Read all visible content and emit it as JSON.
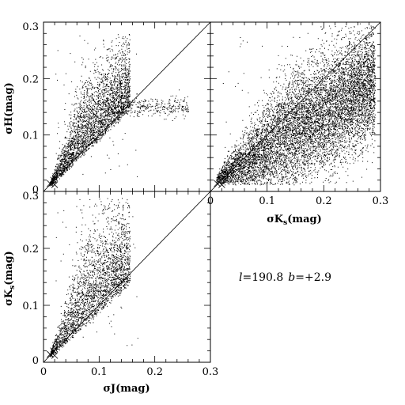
{
  "chart_data": [
    {
      "type": "scatter",
      "panel": "top-left",
      "xlabel": "",
      "ylabel": "σH(mag)",
      "xlim": [
        0,
        0.3
      ],
      "ylim": [
        0,
        0.3
      ],
      "x_tick_labels": [],
      "y_tick_labels": [
        "0",
        "0.1",
        "0.2",
        "0.3"
      ],
      "diagonal_reference": true,
      "shape": {
        "x_min": 0.01,
        "x_cut": 0.155,
        "y_floor": 0.015,
        "slope": 1.7,
        "spread": 0.06,
        "y_max": 0.28,
        "tail_y": 0.15,
        "tail_x_max": 0.26
      }
    },
    {
      "type": "scatter",
      "panel": "top-right",
      "xlabel": "σK",
      "xlabel_sub": "s",
      "xlabel_unit": "(mag)",
      "ylabel": "",
      "xlim": [
        0,
        0.3
      ],
      "ylim": [
        0,
        0.3
      ],
      "x_tick_labels": [
        "0",
        "0.1",
        "0.2",
        "0.3"
      ],
      "y_tick_labels": [],
      "diagonal_reference": true,
      "shape": {
        "x_min": 0.01,
        "x_max": 0.29,
        "y_floor": 0.015,
        "slope": 0.62,
        "spread": 0.05
      }
    },
    {
      "type": "scatter",
      "panel": "bottom-left",
      "xlabel": "σJ(mag)",
      "ylabel": "σK",
      "ylabel_sub": "s",
      "ylabel_unit": "(mag)",
      "xlim": [
        0,
        0.3
      ],
      "ylim": [
        0,
        0.3
      ],
      "x_tick_labels": [
        "0",
        "0.1",
        "0.2",
        "0.3"
      ],
      "y_tick_labels": [
        "0",
        "0.1",
        "0.2",
        "0.3"
      ],
      "diagonal_reference": true,
      "shape": {
        "x_min": 0.01,
        "x_cut": 0.155,
        "y_floor": 0.015,
        "slope": 1.6,
        "spread": 0.07,
        "y_max": 0.29
      }
    }
  ],
  "annotation": {
    "l_label": "l",
    "l_value": "=190.8",
    "b_label": "b",
    "b_value": "=+2.9"
  },
  "marker_color": "#000000"
}
